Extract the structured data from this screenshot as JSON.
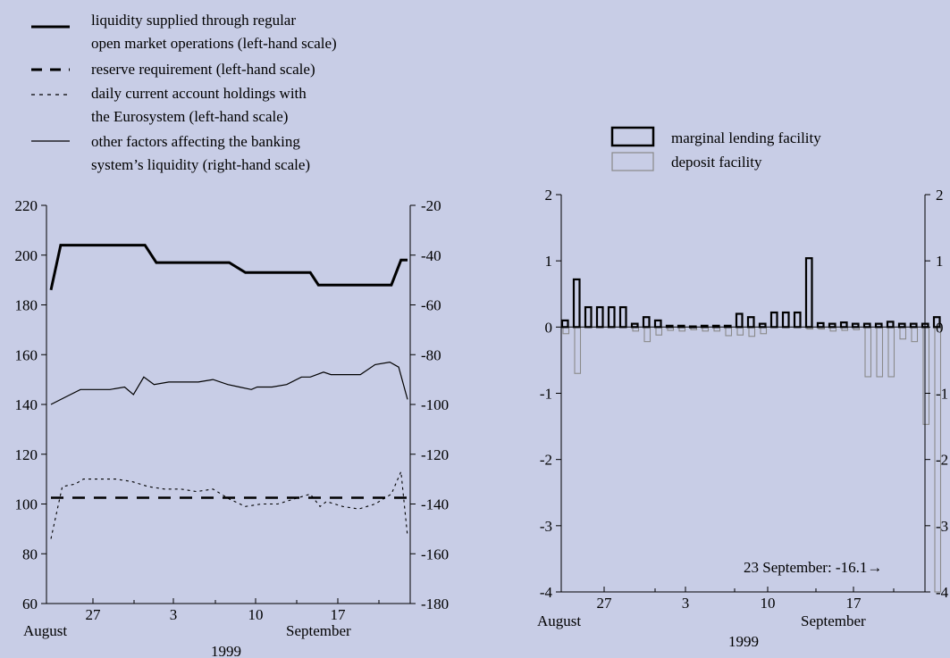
{
  "chart_data": [
    {
      "type": "line",
      "legend": [
        {
          "lines": [
            "liquidity supplied through regular",
            "open market operations (left-hand scale)"
          ],
          "style": "thick-solid"
        },
        {
          "lines": [
            "reserve requirement (left-hand scale)"
          ],
          "style": "thick-dashed"
        },
        {
          "lines": [
            "daily current account holdings with",
            "the Eurosystem (left-hand scale)"
          ],
          "style": "dotted"
        },
        {
          "lines": [
            "other factors affecting the banking",
            "system’s liquidity (right-hand scale)"
          ],
          "style": "thin-solid"
        }
      ],
      "x_ticks": [
        "27",
        "3",
        "10",
        "17"
      ],
      "x_month_labels": [
        "August",
        "September"
      ],
      "x_year_label": "1999",
      "ylim_left": [
        60,
        220
      ],
      "yticks_left": [
        "220",
        "200",
        "180",
        "160",
        "140",
        "120",
        "100",
        "80",
        "60"
      ],
      "ylim_right": [
        -180,
        -20
      ],
      "yticks_right": [
        "-20",
        "-40",
        "-60",
        "-80",
        "-100",
        "-120",
        "-140",
        "-160",
        "-180"
      ],
      "day_range": [
        24,
        47
      ],
      "series": [
        {
          "key": "liquidity",
          "axis": "left",
          "points": [
            [
              24.0,
              186
            ],
            [
              24.6,
              204
            ],
            [
              29,
              204
            ],
            [
              29.8,
              204
            ],
            [
              30.5,
              197
            ],
            [
              35,
              197
            ],
            [
              36,
              193
            ],
            [
              40,
              193
            ],
            [
              40.5,
              188
            ],
            [
              44,
              188
            ],
            [
              45,
              188
            ],
            [
              45.6,
              198
            ],
            [
              46,
              198
            ]
          ]
        },
        {
          "key": "reserve",
          "axis": "left",
          "points": [
            [
              24,
              102.5
            ],
            [
              46,
              102.5
            ]
          ]
        },
        {
          "key": "holdings",
          "axis": "left",
          "points": [
            [
              24,
              86
            ],
            [
              24.7,
              107
            ],
            [
              25.5,
              108
            ],
            [
              26,
              110
            ],
            [
              28,
              110
            ],
            [
              29,
              109
            ],
            [
              30,
              107
            ],
            [
              31,
              106
            ],
            [
              32,
              106
            ],
            [
              33,
              105
            ],
            [
              34,
              106
            ],
            [
              35,
              102
            ],
            [
              36,
              99
            ],
            [
              37,
              100
            ],
            [
              38,
              100
            ],
            [
              39,
              102
            ],
            [
              40,
              104
            ],
            [
              40.6,
              99
            ],
            [
              41,
              101
            ],
            [
              42,
              99
            ],
            [
              43,
              98
            ],
            [
              44,
              100
            ],
            [
              45,
              104
            ],
            [
              45.6,
              113
            ],
            [
              46,
              87
            ]
          ]
        },
        {
          "key": "other",
          "axis": "right",
          "points": [
            [
              24,
              -100
            ],
            [
              25,
              -97
            ],
            [
              26,
              -94
            ],
            [
              27,
              -94
            ],
            [
              28,
              -94
            ],
            [
              29,
              -93
            ],
            [
              29.6,
              -96
            ],
            [
              30.3,
              -89
            ],
            [
              31,
              -92
            ],
            [
              32,
              -91
            ],
            [
              33,
              -91
            ],
            [
              34,
              -91
            ],
            [
              35,
              -90
            ],
            [
              36,
              -92
            ],
            [
              36.8,
              -93
            ],
            [
              37.6,
              -94
            ],
            [
              38,
              -93
            ],
            [
              39,
              -93
            ],
            [
              40,
              -92
            ],
            [
              41,
              -89
            ],
            [
              41.6,
              -89
            ],
            [
              42.5,
              -87
            ],
            [
              43,
              -88
            ],
            [
              44,
              -88
            ],
            [
              45,
              -88
            ],
            [
              46,
              -84
            ],
            [
              47,
              -83
            ],
            [
              47.6,
              -85
            ],
            [
              48.2,
              -98
            ]
          ]
        }
      ]
    },
    {
      "type": "bar",
      "legend": [
        "marginal lending facility",
        "deposit facility"
      ],
      "x_ticks": [
        "27",
        "3",
        "10",
        "17"
      ],
      "x_month_labels": [
        "August",
        "September"
      ],
      "x_year_label": "1999",
      "ylim": [
        -4,
        2
      ],
      "yticks": [
        "2",
        "1",
        "0",
        "-1",
        "-2",
        "-3",
        "-4"
      ],
      "yticks_right": [
        "2",
        "1",
        "0",
        "-1",
        "-2",
        "-3",
        "-4"
      ],
      "annotation": "23 September: -16.1→",
      "days": [
        24,
        25,
        26,
        27,
        28,
        29,
        30,
        31,
        32,
        33,
        34,
        35,
        36,
        37,
        38,
        39,
        40,
        41,
        42,
        43,
        44,
        45,
        46,
        47,
        48,
        49,
        50,
        51,
        52,
        53,
        54
      ],
      "marginal_lending": [
        0.1,
        0.72,
        0.3,
        0.3,
        0.3,
        0.3,
        0.05,
        0.15,
        0.1,
        0.02,
        0.02,
        0.01,
        0.02,
        0.02,
        0.02,
        0.2,
        0.15,
        0.05,
        0.22,
        0.22,
        0.22,
        1.04,
        0.06,
        0.05,
        0.07,
        0.05,
        0.05,
        0.05,
        0.08,
        0.05,
        0.05
      ],
      "deposit": [
        -0.1,
        -0.7,
        0,
        0,
        0,
        0,
        -0.06,
        -0.22,
        -0.12,
        -0.05,
        -0.06,
        -0.04,
        -0.06,
        -0.06,
        -0.13,
        -0.12,
        -0.14,
        -0.1,
        0,
        0,
        0,
        -0.03,
        -0.03,
        -0.06,
        -0.05,
        -0.04,
        -0.75,
        -0.75,
        -0.75,
        -0.18,
        -0.22
      ],
      "extra_bars": [
        {
          "day": 55,
          "marginal_lending": 0.05,
          "deposit": -1.47
        },
        {
          "day": 56,
          "marginal_lending": 0.15,
          "deposit": -16.1
        }
      ]
    }
  ]
}
